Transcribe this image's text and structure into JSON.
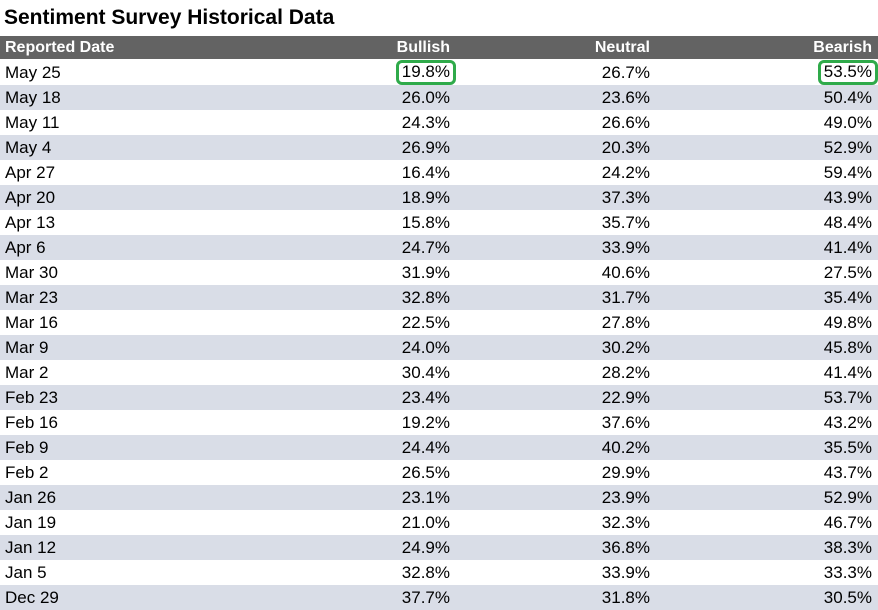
{
  "title": "Sentiment Survey Historical Data",
  "colors": {
    "header_bg": "#636363",
    "stripe_bg": "#d9dde7",
    "highlight_outline": "#2faa4a"
  },
  "chart_data": {
    "type": "table",
    "columns": [
      "Reported Date",
      "Bullish",
      "Neutral",
      "Bearish"
    ],
    "rows": [
      {
        "date": "May 25",
        "bullish": "19.8%",
        "neutral": "26.7%",
        "bearish": "53.5%"
      },
      {
        "date": "May 18",
        "bullish": "26.0%",
        "neutral": "23.6%",
        "bearish": "50.4%"
      },
      {
        "date": "May 11",
        "bullish": "24.3%",
        "neutral": "26.6%",
        "bearish": "49.0%"
      },
      {
        "date": "May 4",
        "bullish": "26.9%",
        "neutral": "20.3%",
        "bearish": "52.9%"
      },
      {
        "date": "Apr 27",
        "bullish": "16.4%",
        "neutral": "24.2%",
        "bearish": "59.4%"
      },
      {
        "date": "Apr 20",
        "bullish": "18.9%",
        "neutral": "37.3%",
        "bearish": "43.9%"
      },
      {
        "date": "Apr 13",
        "bullish": "15.8%",
        "neutral": "35.7%",
        "bearish": "48.4%"
      },
      {
        "date": "Apr 6",
        "bullish": "24.7%",
        "neutral": "33.9%",
        "bearish": "41.4%"
      },
      {
        "date": "Mar 30",
        "bullish": "31.9%",
        "neutral": "40.6%",
        "bearish": "27.5%"
      },
      {
        "date": "Mar 23",
        "bullish": "32.8%",
        "neutral": "31.7%",
        "bearish": "35.4%"
      },
      {
        "date": "Mar 16",
        "bullish": "22.5%",
        "neutral": "27.8%",
        "bearish": "49.8%"
      },
      {
        "date": "Mar 9",
        "bullish": "24.0%",
        "neutral": "30.2%",
        "bearish": "45.8%"
      },
      {
        "date": "Mar 2",
        "bullish": "30.4%",
        "neutral": "28.2%",
        "bearish": "41.4%"
      },
      {
        "date": "Feb 23",
        "bullish": "23.4%",
        "neutral": "22.9%",
        "bearish": "53.7%"
      },
      {
        "date": "Feb 16",
        "bullish": "19.2%",
        "neutral": "37.6%",
        "bearish": "43.2%"
      },
      {
        "date": "Feb 9",
        "bullish": "24.4%",
        "neutral": "40.2%",
        "bearish": "35.5%"
      },
      {
        "date": "Feb 2",
        "bullish": "26.5%",
        "neutral": "29.9%",
        "bearish": "43.7%"
      },
      {
        "date": "Jan 26",
        "bullish": "23.1%",
        "neutral": "23.9%",
        "bearish": "52.9%"
      },
      {
        "date": "Jan 19",
        "bullish": "21.0%",
        "neutral": "32.3%",
        "bearish": "46.7%"
      },
      {
        "date": "Jan 12",
        "bullish": "24.9%",
        "neutral": "36.8%",
        "bearish": "38.3%"
      },
      {
        "date": "Jan 5",
        "bullish": "32.8%",
        "neutral": "33.9%",
        "bearish": "33.3%"
      },
      {
        "date": "Dec 29",
        "bullish": "37.7%",
        "neutral": "31.8%",
        "bearish": "30.5%"
      }
    ],
    "highlighted_cells": [
      {
        "row": 0,
        "column": "Bullish"
      },
      {
        "row": 0,
        "column": "Bearish"
      }
    ]
  }
}
